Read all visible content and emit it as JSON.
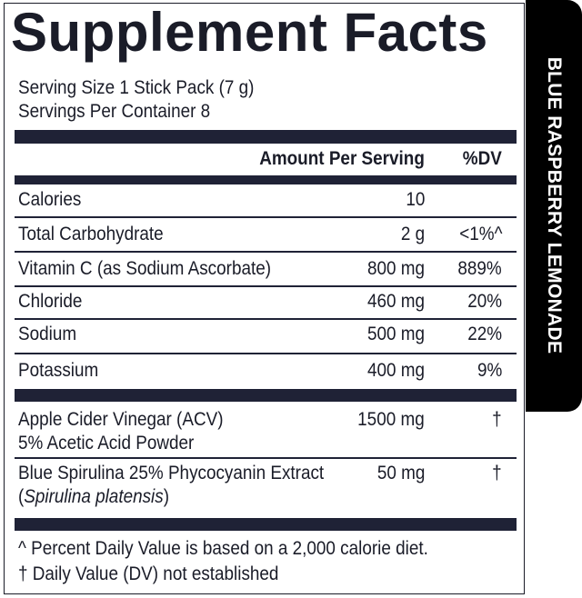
{
  "title": "Supplement Facts",
  "flavor": "BLUE RASPBERRY LEMONADE",
  "serving_size": "Serving Size 1 Stick Pack (7 g)",
  "servings_per_container": "Servings Per Container 8",
  "header": {
    "amount": "Amount Per Serving",
    "dv": "%DV"
  },
  "rows": [
    {
      "name": "Calories",
      "amount": "10",
      "dv": ""
    },
    {
      "name": "Total Carbohydrate",
      "amount": "2 g",
      "dv": "<1%^"
    },
    {
      "name": "Vitamin C (as Sodium Ascorbate)",
      "amount": "800 mg",
      "dv": "889%"
    },
    {
      "name": "Chloride",
      "amount": "460 mg",
      "dv": "20%"
    },
    {
      "name": "Sodium",
      "amount": "500 mg",
      "dv": "22%"
    },
    {
      "name": "Potassium",
      "amount": "400 mg",
      "dv": "9%"
    }
  ],
  "other": [
    {
      "name1": "Apple Cider Vinegar (ACV)",
      "name2": "5% Acetic Acid Powder",
      "amount": "1500 mg",
      "dv": "†"
    },
    {
      "name1": "Blue Spirulina 25% Phycocyanin Extract",
      "name2_open": "(",
      "name2_italic": "Spirulina platensis",
      "name2_close": ")",
      "amount": "50 mg",
      "dv": "†"
    }
  ],
  "footnotes": [
    "^ Percent Daily Value is based on a 2,000 calorie diet.",
    "† Daily Value (DV) not established"
  ]
}
